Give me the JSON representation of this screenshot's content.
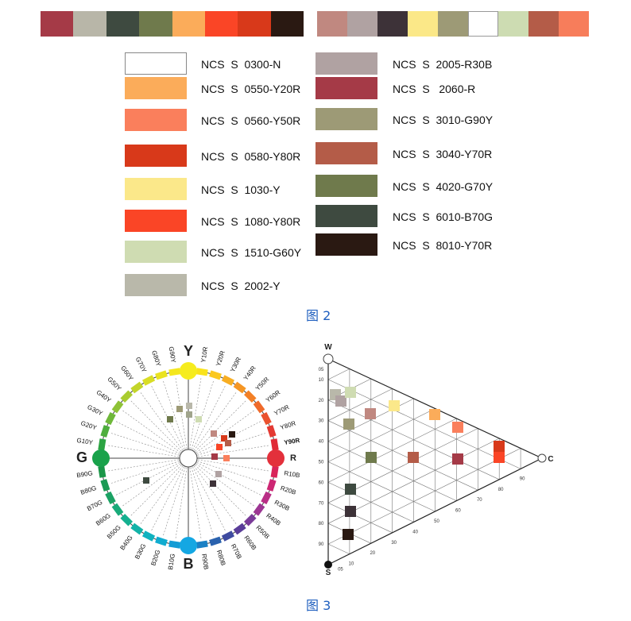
{
  "strip_left": [
    "#a53a47",
    "#b8b6a8",
    "#3e4a40",
    "#6f7a4c",
    "#fbac5a",
    "#fa4526",
    "#d8391a",
    "#2a1912"
  ],
  "strip_right": [
    "#c08880",
    "#b0a2a2",
    "#3d3238",
    "#fbe888",
    "#9d9a76",
    "#ffffff",
    "#cddcb2",
    "#b45c48",
    "#f77d5b"
  ],
  "left_list": [
    {
      "color": "#ffffff",
      "label": "NCS  S  0300-N"
    },
    {
      "color": "#fbac5a",
      "label": "NCS  S  0550-Y20R"
    },
    {
      "color": "#fa7f5c",
      "label": "NCS  S  0560-Y50R"
    },
    {
      "color": "#d8391a",
      "label": "NCS  S  0580-Y80R"
    },
    {
      "color": "#fbe88a",
      "label": "NCS  S  1030-Y"
    },
    {
      "color": "#fa4526",
      "label": "NCS  S  1080-Y80R"
    },
    {
      "color": "#cfdcb2",
      "label": "NCS  S  1510-G60Y"
    },
    {
      "color": "#b9b8aa",
      "label": "NCS  S  2002-Y"
    }
  ],
  "right_list": [
    {
      "color": "#b0a2a2",
      "label": "NCS  S  2005-R30B"
    },
    {
      "color": "#a53a47",
      "label": "NCS  S   2060-R"
    },
    {
      "color": "#9d9a76",
      "label": "NCS  S  3010-G90Y"
    },
    {
      "color": "#b45c48",
      "label": "NCS  S  3040-Y70R"
    },
    {
      "color": "#6f7a4c",
      "label": "NCS  S  4020-G70Y"
    },
    {
      "color": "#3e4a40",
      "label": "NCS  S  6010-B70G"
    },
    {
      "color": "#2a1912",
      "label": "NCS  S  8010-Y70R"
    }
  ],
  "caption_top": "图 2",
  "caption_bottom": "图 3",
  "circle": {
    "poles": [
      {
        "label": "Y",
        "color": "#f6ec1e"
      },
      {
        "label": "R",
        "color": "#e3303b"
      },
      {
        "label": "B",
        "color": "#14a7e3"
      },
      {
        "label": "G",
        "color": "#19a24b"
      }
    ],
    "hue_labels": [
      "Y10R",
      "Y20R",
      "Y30R",
      "Y40R",
      "Y50R",
      "Y60R",
      "Y70R",
      "Y80R",
      "Y90R",
      "R10B",
      "R20B",
      "R30B",
      "R40B",
      "R50B",
      "R60B",
      "R70B",
      "R80B",
      "R90B",
      "B10G",
      "B20G",
      "B30G",
      "B40G",
      "B50G",
      "B60G",
      "B70G",
      "B80G",
      "B90G",
      "G10Y",
      "G20Y",
      "G30Y",
      "G40Y",
      "G50Y",
      "G60Y",
      "G70Y",
      "G80Y",
      "G90Y"
    ],
    "hue_colors": [
      "#f9e31c",
      "#fbc81f",
      "#f8ae22",
      "#f59624",
      "#f38026",
      "#ef6a2a",
      "#ea522f",
      "#e43a33",
      "#e02b37",
      "#d9245a",
      "#cd2774",
      "#b92f86",
      "#9d3693",
      "#7a3b99",
      "#5a3d99",
      "#3f4ba0",
      "#2a62ae",
      "#1a80c4",
      "#139cd5",
      "#10acd0",
      "#10b2bf",
      "#12b3a8",
      "#15b090",
      "#18aa79",
      "#1ba264",
      "#1b9a54",
      "#1a9648",
      "#2ca443",
      "#4eae3e",
      "#6fb83a",
      "#8ec236",
      "#a9cc2f",
      "#c3d52a",
      "#d9dd25",
      "#eae320",
      "#f4e71e"
    ],
    "sample_colors": [
      "#9d9a76",
      "#b9b8aa",
      "#cfdcb2",
      "#6f7a4c",
      "#a0a48c",
      "#c08880",
      "#d8391a",
      "#2a1912",
      "#fa4526",
      "#b45c48",
      "#a53a47",
      "#3e4a40",
      "#b0a2a2",
      "#fa7f5c",
      "#3d3238"
    ]
  },
  "triangle": {
    "corners": {
      "w": "W",
      "s": "S",
      "c": "C"
    },
    "whiteness_ticks": [
      "05",
      "10",
      "20",
      "30",
      "40",
      "50",
      "60",
      "70",
      "80",
      "90"
    ],
    "chroma_ticks": [
      "05",
      "10",
      "20",
      "30",
      "40",
      "50",
      "60",
      "70",
      "80",
      "90"
    ],
    "samples": [
      "#b9b8aa",
      "#b0a2a2",
      "#cfdcb2",
      "#9d9a76",
      "#c08880",
      "#fbe88a",
      "#fbac5a",
      "#fa7f5c",
      "#d8391a",
      "#fa4526",
      "#6f7a4c",
      "#b45c48",
      "#a53a47",
      "#3e4a40",
      "#3d3238",
      "#2a1912"
    ]
  }
}
